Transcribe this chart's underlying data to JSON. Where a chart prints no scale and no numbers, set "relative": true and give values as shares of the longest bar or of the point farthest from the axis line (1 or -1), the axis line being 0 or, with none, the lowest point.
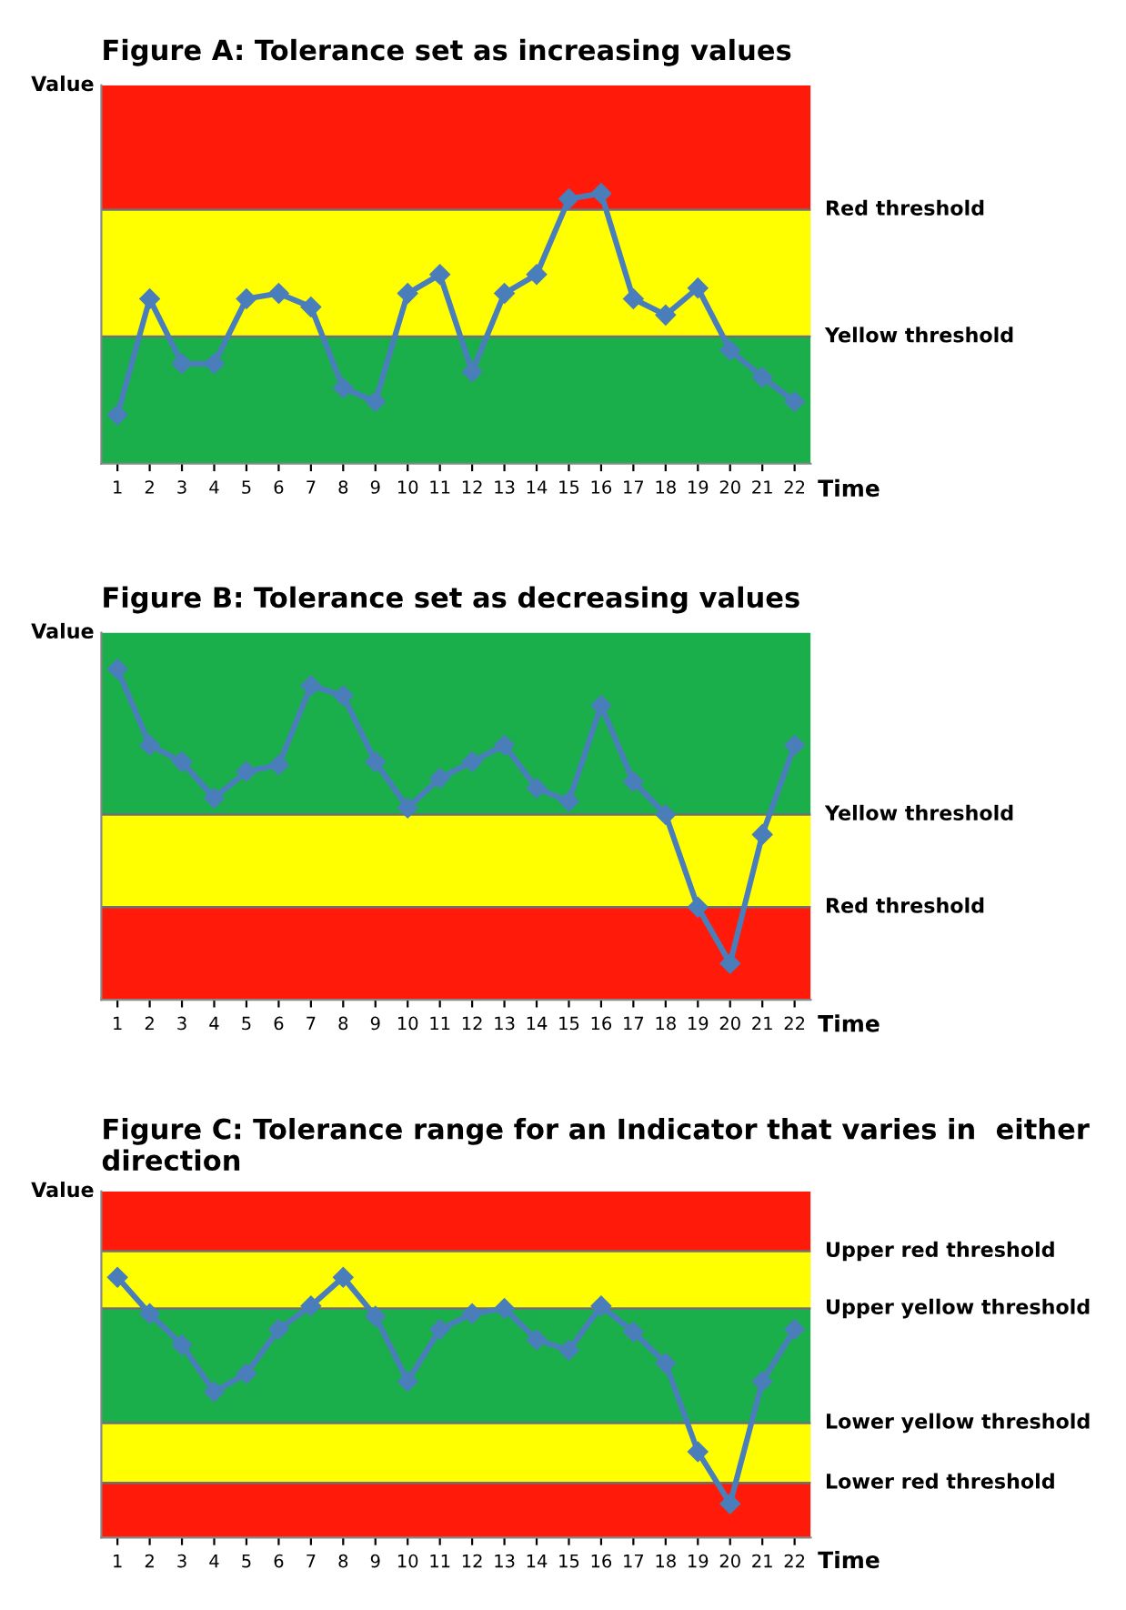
{
  "chart_data": [
    {
      "type": "line",
      "title": "Figure A: Tolerance set as increasing values",
      "xlabel": "Time",
      "ylabel": "Value",
      "relative": true,
      "tick_labels": "x",
      "marker": "diamond",
      "line_style": "solid",
      "grid": false,
      "legend": false,
      "categories": [
        "1",
        "2",
        "3",
        "4",
        "5",
        "6",
        "7",
        "8",
        "9",
        "10",
        "11",
        "12",
        "13",
        "14",
        "15",
        "16",
        "17",
        "18",
        "19",
        "20",
        "21",
        "22"
      ],
      "series": [
        {
          "color": "#4a7ebb",
          "values": [
            0.18,
            0.61,
            0.37,
            0.37,
            0.61,
            0.63,
            0.58,
            0.28,
            0.23,
            0.63,
            0.7,
            0.34,
            0.63,
            0.7,
            0.98,
            1,
            0.61,
            0.55,
            0.65,
            0.42,
            0.32,
            0.23
          ]
        }
      ],
      "ref_lines": [
        {
          "axis": "y",
          "value": 0.94,
          "label": "Red threshold",
          "color": "#707070"
        },
        {
          "axis": "y",
          "value": 0.47,
          "label": "Yellow threshold",
          "color": "#707070"
        }
      ],
      "bands": [
        {
          "axis": "y",
          "from": 0,
          "to": 0.47,
          "color": "#1aaf4b"
        },
        {
          "axis": "y",
          "from": 0.47,
          "to": 0.94,
          "color": "#ffff00"
        },
        {
          "axis": "y",
          "from": 0.94,
          "to": 1.4,
          "color": "#ff1a0a"
        }
      ]
    },
    {
      "type": "line",
      "title": "Figure B: Tolerance set as decreasing values",
      "xlabel": "Time",
      "ylabel": "Value",
      "relative": true,
      "tick_labels": "x",
      "marker": "diamond",
      "line_style": "solid",
      "grid": false,
      "legend": false,
      "categories": [
        "1",
        "2",
        "3",
        "4",
        "5",
        "6",
        "7",
        "8",
        "9",
        "10",
        "11",
        "12",
        "13",
        "14",
        "15",
        "16",
        "17",
        "18",
        "19",
        "20",
        "21",
        "22"
      ],
      "series": [
        {
          "color": "#4a7ebb",
          "values": [
            1,
            0.77,
            0.72,
            0.61,
            0.69,
            0.71,
            0.95,
            0.92,
            0.72,
            0.58,
            0.67,
            0.72,
            0.77,
            0.64,
            0.6,
            0.89,
            0.66,
            0.56,
            0.28,
            0.11,
            0.5,
            0.77
          ]
        }
      ],
      "ref_lines": [
        {
          "axis": "y",
          "value": 0.56,
          "label": "Yellow threshold",
          "color": "#707070"
        },
        {
          "axis": "y",
          "value": 0.28,
          "label": "Red threshold",
          "color": "#707070"
        }
      ],
      "bands": [
        {
          "axis": "y",
          "from": 0,
          "to": 0.28,
          "color": "#ff1a0a"
        },
        {
          "axis": "y",
          "from": 0.28,
          "to": 0.56,
          "color": "#ffff00"
        },
        {
          "axis": "y",
          "from": 0.56,
          "to": 1.11,
          "color": "#1aaf4b"
        }
      ]
    },
    {
      "type": "line",
      "title": "Figure C: Tolerance range for an Indicator that varies in  either direction",
      "xlabel": "Time",
      "ylabel": "Value",
      "relative": true,
      "tick_labels": "x",
      "marker": "diamond",
      "line_style": "solid",
      "grid": false,
      "legend": false,
      "categories": [
        "1",
        "2",
        "3",
        "4",
        "5",
        "6",
        "7",
        "8",
        "9",
        "10",
        "11",
        "12",
        "13",
        "14",
        "15",
        "16",
        "17",
        "18",
        "19",
        "20",
        "21",
        "22"
      ],
      "series": [
        {
          "color": "#4a7ebb",
          "values": [
            1,
            0.86,
            0.74,
            0.56,
            0.63,
            0.8,
            0.89,
            1,
            0.85,
            0.6,
            0.8,
            0.86,
            0.88,
            0.76,
            0.72,
            0.89,
            0.79,
            0.67,
            0.33,
            0.13,
            0.6,
            0.8
          ]
        }
      ],
      "ref_lines": [
        {
          "axis": "y",
          "value": 1.1,
          "label": "Upper red threshold",
          "color": "#707070"
        },
        {
          "axis": "y",
          "value": 0.88,
          "label": "Upper yellow threshold",
          "color": "#707070"
        },
        {
          "axis": "y",
          "value": 0.44,
          "label": "Lower yellow threshold",
          "color": "#707070"
        },
        {
          "axis": "y",
          "value": 0.21,
          "label": "Lower red threshold",
          "color": "#707070"
        }
      ],
      "bands": [
        {
          "axis": "y",
          "from": 0,
          "to": 0.21,
          "color": "#ff1a0a"
        },
        {
          "axis": "y",
          "from": 0.21,
          "to": 0.44,
          "color": "#ffff00"
        },
        {
          "axis": "y",
          "from": 0.44,
          "to": 0.88,
          "color": "#1aaf4b"
        },
        {
          "axis": "y",
          "from": 0.88,
          "to": 1.1,
          "color": "#ffff00"
        },
        {
          "axis": "y",
          "from": 1.1,
          "to": 1.33,
          "color": "#ff1a0a"
        }
      ]
    }
  ]
}
